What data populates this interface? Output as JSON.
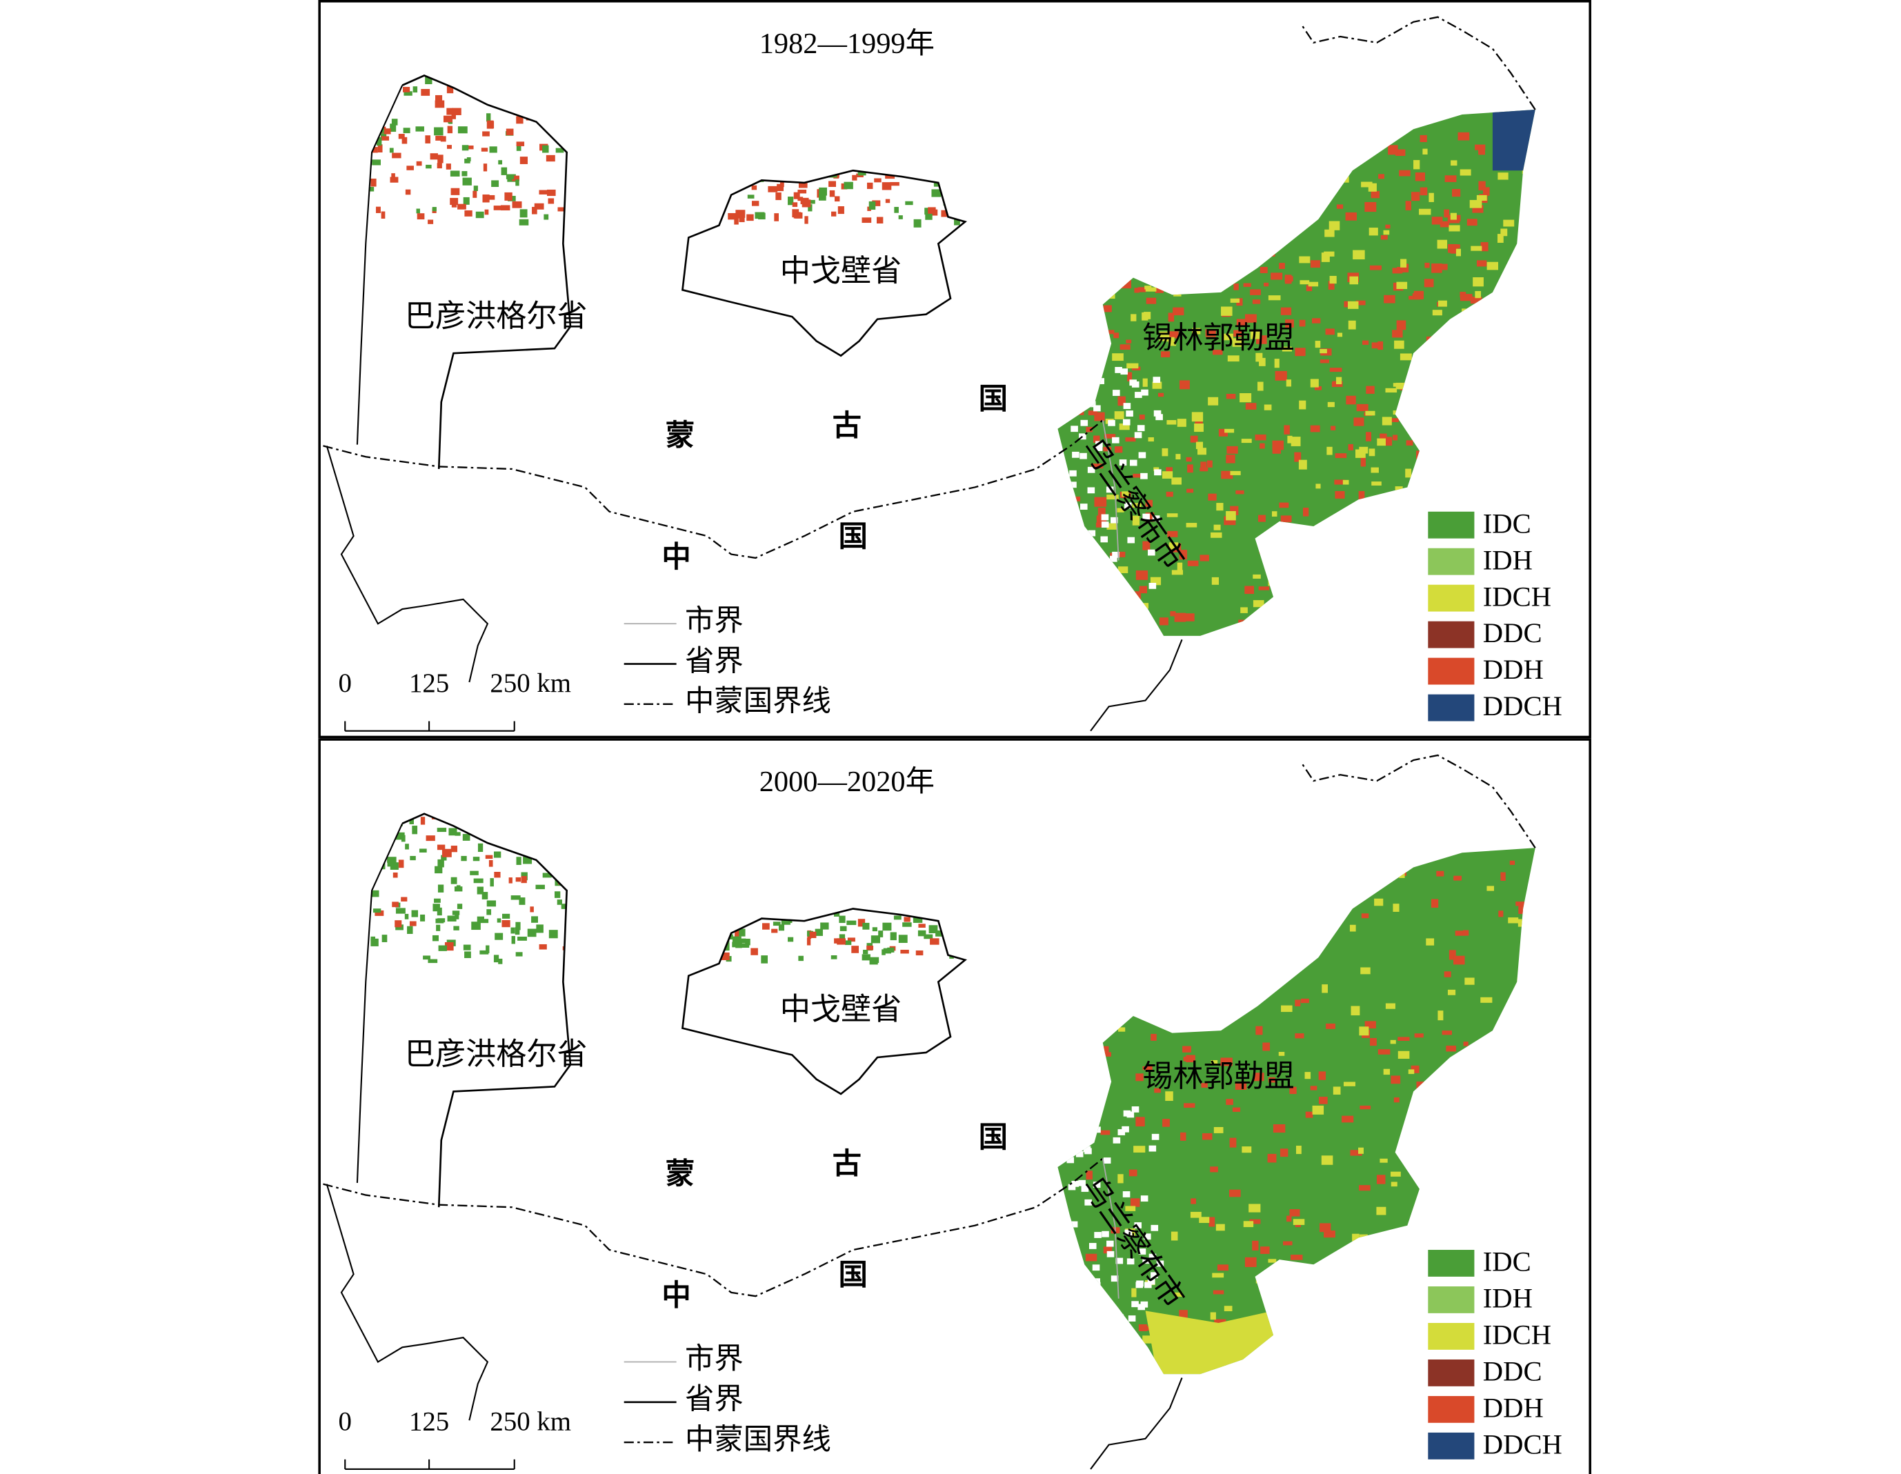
{
  "panels": [
    {
      "title": "1982—1999年",
      "regions": [
        "巴彦洪格尔省",
        "中戈壁省",
        "锡林郭勒盟",
        "乌兰察布市"
      ],
      "country_labels": [
        "蒙",
        "古",
        "国",
        "中",
        "国"
      ],
      "line_legend": [
        "市界",
        "省界",
        "中蒙国界线"
      ],
      "scale": [
        "0",
        "125",
        "250 km"
      ],
      "legend": [
        {
          "name": "IDC",
          "color": "#4a9e37"
        },
        {
          "name": "IDH",
          "color": "#8cc65a"
        },
        {
          "name": "IDCH",
          "color": "#d4dc3a"
        },
        {
          "name": "DDC",
          "color": "#8c3326"
        },
        {
          "name": "DDH",
          "color": "#d9492a"
        },
        {
          "name": "DDCH",
          "color": "#23477a"
        }
      ]
    },
    {
      "title": "2000—2020年",
      "regions": [
        "巴彦洪格尔省",
        "中戈壁省",
        "锡林郭勒盟",
        "乌兰察布市"
      ],
      "country_labels": [
        "蒙",
        "古",
        "国",
        "中",
        "国"
      ],
      "line_legend": [
        "市界",
        "省界",
        "中蒙国界线"
      ],
      "scale": [
        "0",
        "125",
        "250 km"
      ],
      "legend": [
        {
          "name": "IDC",
          "color": "#4a9e37"
        },
        {
          "name": "IDH",
          "color": "#8cc65a"
        },
        {
          "name": "IDCH",
          "color": "#d4dc3a"
        },
        {
          "name": "DDC",
          "color": "#8c3326"
        },
        {
          "name": "DDH",
          "color": "#d9492a"
        },
        {
          "name": "DDCH",
          "color": "#23477a"
        }
      ]
    }
  ]
}
